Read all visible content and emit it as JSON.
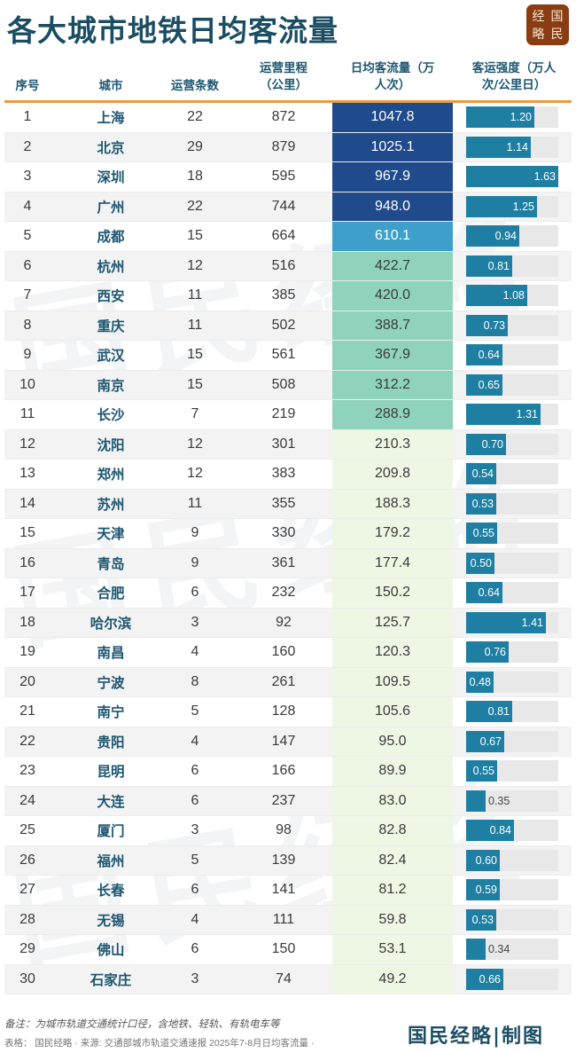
{
  "title": "各大城市地铁日均客流量",
  "logo": {
    "chars": [
      "经",
      "国",
      "略",
      "民"
    ]
  },
  "columns": {
    "idx": "序号",
    "city": "城市",
    "lines": "运营条数",
    "km_line1": "运营里程",
    "km_line2": "（公里）",
    "flow_line1": "日均客流量（万",
    "flow_line2": "人次）",
    "intensity_line1": "客运强度（万人",
    "intensity_line2": "次/公里日）"
  },
  "colors": {
    "header_text": "#1d5670",
    "orange_rule": "#ee9a3a",
    "flow_tier1": "#1f4a8c",
    "flow_tier2": "#3e9fcb",
    "flow_tier3": "#8fd3bd",
    "flow_tier4": "#eef6e4",
    "bar": "#1f7fa3",
    "bar_track": "#e8e8e8",
    "logo_bg": "#8a3d12"
  },
  "rows": [
    {
      "idx": "1",
      "city": "上海",
      "lines": "22",
      "km": "872",
      "flow": "1047.8",
      "intensity": "1.20"
    },
    {
      "idx": "2",
      "city": "北京",
      "lines": "29",
      "km": "879",
      "flow": "1025.1",
      "intensity": "1.14"
    },
    {
      "idx": "3",
      "city": "深圳",
      "lines": "18",
      "km": "595",
      "flow": "967.9",
      "intensity": "1.63"
    },
    {
      "idx": "4",
      "city": "广州",
      "lines": "22",
      "km": "744",
      "flow": "948.0",
      "intensity": "1.25"
    },
    {
      "idx": "5",
      "city": "成都",
      "lines": "15",
      "km": "664",
      "flow": "610.1",
      "intensity": "0.94"
    },
    {
      "idx": "6",
      "city": "杭州",
      "lines": "12",
      "km": "516",
      "flow": "422.7",
      "intensity": "0.81"
    },
    {
      "idx": "7",
      "city": "西安",
      "lines": "11",
      "km": "385",
      "flow": "420.0",
      "intensity": "1.08"
    },
    {
      "idx": "8",
      "city": "重庆",
      "lines": "11",
      "km": "502",
      "flow": "388.7",
      "intensity": "0.73"
    },
    {
      "idx": "9",
      "city": "武汉",
      "lines": "15",
      "km": "561",
      "flow": "367.9",
      "intensity": "0.64"
    },
    {
      "idx": "10",
      "city": "南京",
      "lines": "15",
      "km": "508",
      "flow": "312.2",
      "intensity": "0.65"
    },
    {
      "idx": "11",
      "city": "长沙",
      "lines": "7",
      "km": "219",
      "flow": "288.9",
      "intensity": "1.31"
    },
    {
      "idx": "12",
      "city": "沈阳",
      "lines": "12",
      "km": "301",
      "flow": "210.3",
      "intensity": "0.70"
    },
    {
      "idx": "13",
      "city": "郑州",
      "lines": "12",
      "km": "383",
      "flow": "209.8",
      "intensity": "0.54"
    },
    {
      "idx": "14",
      "city": "苏州",
      "lines": "11",
      "km": "355",
      "flow": "188.3",
      "intensity": "0.53"
    },
    {
      "idx": "15",
      "city": "天津",
      "lines": "9",
      "km": "330",
      "flow": "179.2",
      "intensity": "0.55"
    },
    {
      "idx": "16",
      "city": "青岛",
      "lines": "9",
      "km": "361",
      "flow": "177.4",
      "intensity": "0.50"
    },
    {
      "idx": "17",
      "city": "合肥",
      "lines": "6",
      "km": "232",
      "flow": "150.2",
      "intensity": "0.64"
    },
    {
      "idx": "18",
      "city": "哈尔滨",
      "lines": "3",
      "km": "92",
      "flow": "125.7",
      "intensity": "1.41"
    },
    {
      "idx": "19",
      "city": "南昌",
      "lines": "4",
      "km": "160",
      "flow": "120.3",
      "intensity": "0.76"
    },
    {
      "idx": "20",
      "city": "宁波",
      "lines": "8",
      "km": "261",
      "flow": "109.5",
      "intensity": "0.48"
    },
    {
      "idx": "21",
      "city": "南宁",
      "lines": "5",
      "km": "128",
      "flow": "105.6",
      "intensity": "0.81"
    },
    {
      "idx": "22",
      "city": "贵阳",
      "lines": "4",
      "km": "147",
      "flow": "95.0",
      "intensity": "0.67"
    },
    {
      "idx": "23",
      "city": "昆明",
      "lines": "6",
      "km": "166",
      "flow": "89.9",
      "intensity": "0.55"
    },
    {
      "idx": "24",
      "city": "大连",
      "lines": "6",
      "km": "237",
      "flow": "83.0",
      "intensity": "0.35"
    },
    {
      "idx": "25",
      "city": "厦门",
      "lines": "3",
      "km": "98",
      "flow": "82.8",
      "intensity": "0.84"
    },
    {
      "idx": "26",
      "city": "福州",
      "lines": "5",
      "km": "139",
      "flow": "82.4",
      "intensity": "0.60"
    },
    {
      "idx": "27",
      "city": "长春",
      "lines": "6",
      "km": "141",
      "flow": "81.2",
      "intensity": "0.59"
    },
    {
      "idx": "28",
      "city": "无锡",
      "lines": "4",
      "km": "111",
      "flow": "59.8",
      "intensity": "0.53"
    },
    {
      "idx": "29",
      "city": "佛山",
      "lines": "6",
      "km": "150",
      "flow": "53.1",
      "intensity": "0.34"
    },
    {
      "idx": "30",
      "city": "石家庄",
      "lines": "3",
      "km": "74",
      "flow": "49.2",
      "intensity": "0.66"
    }
  ],
  "footer": {
    "note": "备注：为城市轨道交通统计口径，含地铁、轻轨、有轨电车等",
    "source": "表格： 国民经略 · 来源: 交通部城市轨道交通速报 2025年7-8月日均客流量 ·",
    "brand": "国民经略|制图"
  },
  "watermark": "国民经略",
  "chart_data": {
    "type": "table",
    "title": "各大城市地铁日均客流量",
    "columns": [
      "序号",
      "城市",
      "运营条数",
      "运营里程（公里）",
      "日均客流量（万人次）",
      "客运强度（万人次/公里日）"
    ],
    "categories": [
      "上海",
      "北京",
      "深圳",
      "广州",
      "成都",
      "杭州",
      "西安",
      "重庆",
      "武汉",
      "南京",
      "长沙",
      "沈阳",
      "郑州",
      "苏州",
      "天津",
      "青岛",
      "合肥",
      "哈尔滨",
      "南昌",
      "宁波",
      "南宁",
      "贵阳",
      "昆明",
      "大连",
      "厦门",
      "福州",
      "长春",
      "无锡",
      "佛山",
      "石家庄"
    ],
    "series": [
      {
        "name": "运营条数",
        "values": [
          22,
          29,
          18,
          22,
          15,
          12,
          11,
          11,
          15,
          15,
          7,
          12,
          12,
          11,
          9,
          9,
          6,
          3,
          4,
          8,
          5,
          4,
          6,
          6,
          3,
          5,
          6,
          4,
          6,
          3
        ]
      },
      {
        "name": "运营里程（公里）",
        "values": [
          872,
          879,
          595,
          744,
          664,
          516,
          385,
          502,
          561,
          508,
          219,
          301,
          383,
          355,
          330,
          361,
          232,
          92,
          160,
          261,
          128,
          147,
          166,
          237,
          98,
          139,
          141,
          111,
          150,
          74
        ]
      },
      {
        "name": "日均客流量（万人次）",
        "values": [
          1047.8,
          1025.1,
          967.9,
          948.0,
          610.1,
          422.7,
          420.0,
          388.7,
          367.9,
          312.2,
          288.9,
          210.3,
          209.8,
          188.3,
          179.2,
          177.4,
          150.2,
          125.7,
          120.3,
          109.5,
          105.6,
          95.0,
          89.9,
          83.0,
          82.8,
          82.4,
          81.2,
          59.8,
          53.1,
          49.2
        ]
      },
      {
        "name": "客运强度（万人次/公里日）",
        "values": [
          1.2,
          1.14,
          1.63,
          1.25,
          0.94,
          0.81,
          1.08,
          0.73,
          0.64,
          0.65,
          1.31,
          0.7,
          0.54,
          0.53,
          0.55,
          0.5,
          0.64,
          1.41,
          0.76,
          0.48,
          0.81,
          0.67,
          0.55,
          0.35,
          0.84,
          0.6,
          0.59,
          0.53,
          0.34,
          0.66
        ]
      }
    ],
    "annotations": [
      "备注：为城市轨道交通统计口径，含地铁、轻轨、有轨电车等"
    ],
    "source": "交通部城市轨道交通速报 2025年7-8月日均客流量"
  }
}
